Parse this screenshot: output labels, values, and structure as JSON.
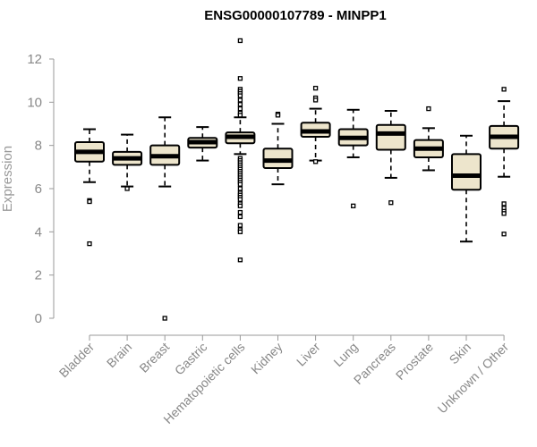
{
  "chart_data": {
    "type": "box",
    "title": "ENSG00000107789 - MINPP1",
    "xlabel": "",
    "ylabel": "Expression",
    "ylim": [
      0,
      12.5
    ],
    "yticks": [
      0,
      2,
      4,
      6,
      8,
      10,
      12
    ],
    "box_fill": "#ede5cc",
    "categories": [
      "Bladder",
      "Brain",
      "Breast",
      "Gastric",
      "Hematopoietic cells",
      "Kidney",
      "Liver",
      "Lung",
      "Pancreas",
      "Prostate",
      "Skin",
      "Unknown / Other"
    ],
    "boxes": [
      {
        "whislo": 6.3,
        "q1": 7.25,
        "med": 7.7,
        "q3": 8.15,
        "whishi": 8.75,
        "outliers": [
          5.45,
          5.4,
          3.45
        ]
      },
      {
        "whislo": 6.1,
        "q1": 7.1,
        "med": 7.4,
        "q3": 7.7,
        "whishi": 8.5,
        "outliers": [
          6.0
        ]
      },
      {
        "whislo": 6.1,
        "q1": 7.1,
        "med": 7.5,
        "q3": 8.0,
        "whishi": 9.3,
        "outliers": [
          0.0
        ]
      },
      {
        "whislo": 7.3,
        "q1": 7.9,
        "med": 8.15,
        "q3": 8.35,
        "whishi": 8.85,
        "outliers": []
      },
      {
        "whislo": 7.6,
        "q1": 8.1,
        "med": 8.4,
        "q3": 8.6,
        "whishi": 9.3,
        "outliers": [
          12.85,
          11.1,
          10.6,
          10.5,
          10.4,
          10.3,
          10.1,
          9.9,
          9.7,
          9.5,
          9.4,
          7.4,
          7.3,
          7.2,
          7.1,
          7.0,
          6.9,
          6.8,
          6.7,
          6.6,
          6.5,
          6.4,
          6.3,
          6.2,
          6.0,
          5.8,
          5.7,
          5.6,
          5.5,
          5.3,
          5.2,
          4.9,
          4.7,
          4.3,
          4.1,
          4.0,
          2.7
        ]
      },
      {
        "whislo": 6.2,
        "q1": 6.95,
        "med": 7.3,
        "q3": 7.85,
        "whishi": 9.0,
        "outliers": [
          9.45,
          9.4
        ]
      },
      {
        "whislo": 7.3,
        "q1": 8.4,
        "med": 8.65,
        "q3": 9.05,
        "whishi": 9.7,
        "outliers": [
          10.65,
          10.2,
          10.1,
          7.25
        ]
      },
      {
        "whislo": 7.45,
        "q1": 8.0,
        "med": 8.35,
        "q3": 8.75,
        "whishi": 9.65,
        "outliers": [
          5.2
        ]
      },
      {
        "whislo": 6.5,
        "q1": 7.8,
        "med": 8.55,
        "q3": 8.95,
        "whishi": 9.6,
        "outliers": [
          5.35
        ]
      },
      {
        "whislo": 6.85,
        "q1": 7.45,
        "med": 7.85,
        "q3": 8.25,
        "whishi": 8.8,
        "outliers": [
          9.7
        ]
      },
      {
        "whislo": 3.55,
        "q1": 5.95,
        "med": 6.6,
        "q3": 7.6,
        "whishi": 8.45,
        "outliers": []
      },
      {
        "whislo": 6.55,
        "q1": 7.85,
        "med": 8.4,
        "q3": 8.9,
        "whishi": 10.05,
        "outliers": [
          10.6,
          5.3,
          5.1,
          4.95,
          4.85,
          3.9
        ]
      }
    ]
  }
}
